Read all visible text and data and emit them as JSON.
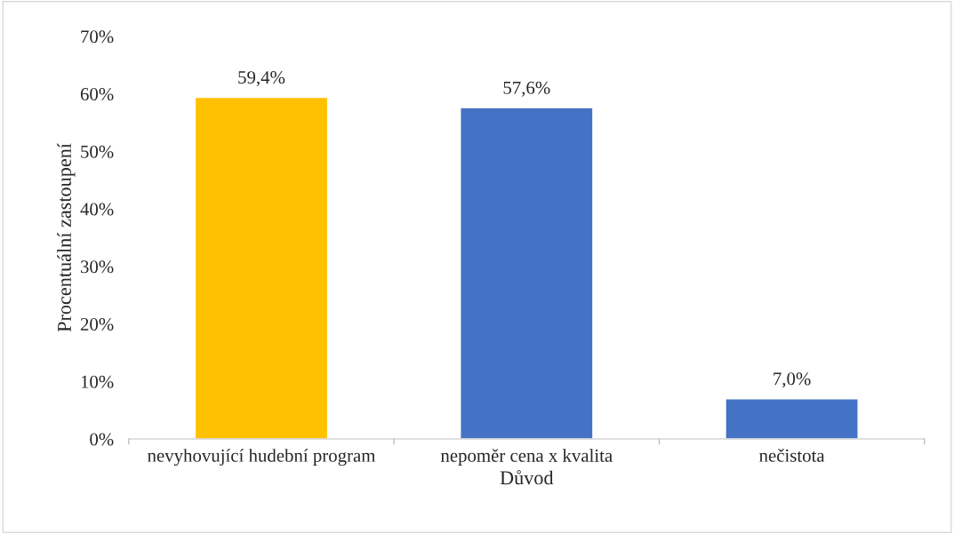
{
  "chart_data": {
    "type": "bar",
    "xlabel": "Důvod",
    "ylabel": "Procentuální zastoupení",
    "categories": [
      "nevyhovující hudební program",
      "nepoměr cena x kvalita",
      "nečistota"
    ],
    "values": [
      59.4,
      57.6,
      7.0
    ],
    "colors": [
      "#ffc000",
      "#4472c4",
      "#4472c4"
    ],
    "value_labels": [
      "59,4%",
      "57,6%",
      "7,0%"
    ],
    "ylim": [
      0,
      70
    ],
    "yticks": [
      {
        "value": 0,
        "label": "0%"
      },
      {
        "value": 10,
        "label": "10%"
      },
      {
        "value": 20,
        "label": "20%"
      },
      {
        "value": 30,
        "label": "30%"
      },
      {
        "value": 40,
        "label": "40%"
      },
      {
        "value": 50,
        "label": "50%"
      },
      {
        "value": 60,
        "label": "60%"
      },
      {
        "value": 70,
        "label": "70%"
      }
    ],
    "grid": false,
    "legend": false
  }
}
